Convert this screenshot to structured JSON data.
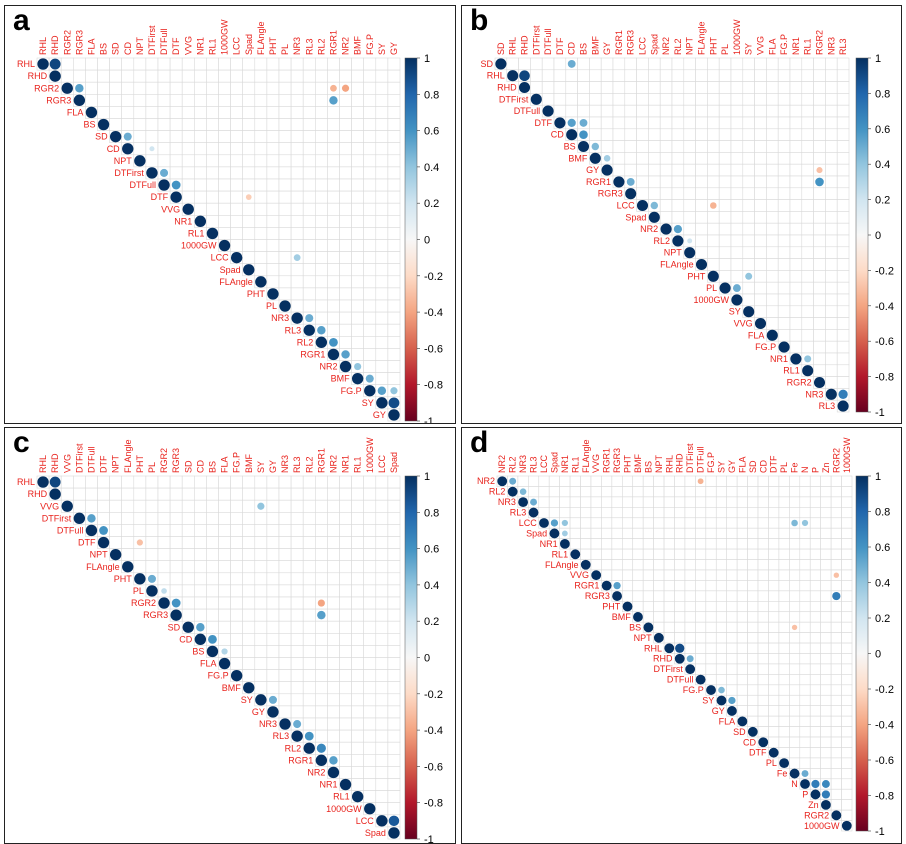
{
  "colors": {
    "label": "#e8221c",
    "grid": "#d9d9d9",
    "diagonal": "#053061",
    "scale": [
      "#67001f",
      "#b2182b",
      "#d6604d",
      "#f4a582",
      "#fddbc7",
      "#f7f7f7",
      "#d1e5f0",
      "#92c5de",
      "#4393c3",
      "#2166ac",
      "#053061"
    ]
  },
  "colorbar": {
    "ticks": [
      "1",
      "0.8",
      "0.6",
      "0.4",
      "0.2",
      "0",
      "-0.2",
      "-0.4",
      "-0.6",
      "-0.8",
      "-1"
    ],
    "range": [
      -1,
      1
    ]
  },
  "chart_data": [
    {
      "type": "heatmap",
      "panel": "a",
      "variables": [
        "RHL",
        "RHD",
        "RGR2",
        "RGR3",
        "FLA",
        "BS",
        "SD",
        "CD",
        "NPT",
        "DTFirst",
        "DTFull",
        "DTF",
        "VVG",
        "NR1",
        "RL1",
        "1000GW",
        "LCC",
        "Spad",
        "FLAngle",
        "PHT",
        "PL",
        "NR3",
        "RL3",
        "RL2",
        "RGR1",
        "NR2",
        "BMF",
        "FG.P",
        "SY",
        "GY"
      ],
      "matrix_shape": "upper-triangle",
      "diagonal": 1,
      "highlights": [
        {
          "row": "RHL",
          "col": "RHD",
          "r": 0.92
        },
        {
          "row": "RGR2",
          "col": "RGR3",
          "r": 0.55
        },
        {
          "row": "SD",
          "col": "CD",
          "r": 0.5
        },
        {
          "row": "CD",
          "col": "DTFirst",
          "r": 0.2
        },
        {
          "row": "DTFirst",
          "col": "DTFull",
          "r": 0.5
        },
        {
          "row": "DTFull",
          "col": "DTF",
          "r": 0.6
        },
        {
          "row": "NR3",
          "col": "RL3",
          "r": 0.5
        },
        {
          "row": "RL3",
          "col": "RL2",
          "r": 0.55
        },
        {
          "row": "RL2",
          "col": "RGR1",
          "r": 0.6
        },
        {
          "row": "RGR1",
          "col": "NR2",
          "r": 0.55
        },
        {
          "row": "NR2",
          "col": "BMF",
          "r": 0.4
        },
        {
          "row": "BMF",
          "col": "FG.P",
          "r": 0.5
        },
        {
          "row": "FG.P",
          "col": "SY",
          "r": 0.55
        },
        {
          "row": "SY",
          "col": "GY",
          "r": 0.9
        },
        {
          "row": "RGR2",
          "col": "RGR1",
          "r": -0.35
        },
        {
          "row": "RGR2",
          "col": "NR2",
          "r": -0.4
        },
        {
          "row": "RGR3",
          "col": "RGR1",
          "r": 0.55
        },
        {
          "row": "FG.P",
          "col": "GY",
          "r": 0.4
        },
        {
          "row": "LCC",
          "col": "NR3",
          "r": 0.35
        },
        {
          "row": "DTF",
          "col": "Spad",
          "r": -0.25
        }
      ]
    },
    {
      "type": "heatmap",
      "panel": "b",
      "variables": [
        "SD",
        "RHL",
        "RHD",
        "DTFirst",
        "DTFull",
        "DTF",
        "CD",
        "BS",
        "BMF",
        "GY",
        "RGR1",
        "RGR3",
        "LCC",
        "Spad",
        "NR2",
        "RL2",
        "NPT",
        "FLAngle",
        "PHT",
        "PL",
        "1000GW",
        "SY",
        "VVG",
        "FLA",
        "FG.P",
        "NR1",
        "RL1",
        "RGR2",
        "NR3",
        "RL3"
      ],
      "matrix_shape": "upper-triangle",
      "diagonal": 1,
      "highlights": [
        {
          "row": "SD",
          "col": "CD",
          "r": 0.5
        },
        {
          "row": "RHL",
          "col": "RHD",
          "r": 0.92
        },
        {
          "row": "DTF",
          "col": "CD",
          "r": 0.55
        },
        {
          "row": "DTF",
          "col": "BS",
          "r": 0.5
        },
        {
          "row": "CD",
          "col": "BS",
          "r": 0.6
        },
        {
          "row": "BS",
          "col": "BMF",
          "r": 0.45
        },
        {
          "row": "BMF",
          "col": "GY",
          "r": 0.35
        },
        {
          "row": "RGR1",
          "col": "RGR3",
          "r": 0.5
        },
        {
          "row": "LCC",
          "col": "Spad",
          "r": 0.45
        },
        {
          "row": "NR2",
          "col": "RL2",
          "r": 0.55
        },
        {
          "row": "RL2",
          "col": "NPT",
          "r": 0.2
        },
        {
          "row": "PL",
          "col": "1000GW",
          "r": 0.5
        },
        {
          "row": "NR1",
          "col": "RL1",
          "r": 0.4
        },
        {
          "row": "NR3",
          "col": "RL3",
          "r": 0.7
        },
        {
          "row": "GY",
          "col": "RGR2",
          "r": -0.3
        },
        {
          "row": "RGR1",
          "col": "RGR2",
          "r": 0.6
        },
        {
          "row": "LCC",
          "col": "PHT",
          "r": -0.35
        },
        {
          "row": "PHT",
          "col": "SY",
          "r": 0.4
        }
      ]
    },
    {
      "type": "heatmap",
      "panel": "c",
      "variables": [
        "RHL",
        "RHD",
        "VVG",
        "DTFirst",
        "DTFull",
        "DTF",
        "NPT",
        "FLAngle",
        "PHT",
        "PL",
        "RGR2",
        "RGR3",
        "SD",
        "CD",
        "BS",
        "FLA",
        "FG.P",
        "BMF",
        "SY",
        "GY",
        "NR3",
        "RL3",
        "RL2",
        "RGR1",
        "NR2",
        "NR1",
        "RL1",
        "1000GW",
        "LCC",
        "Spad"
      ],
      "matrix_shape": "upper-triangle",
      "diagonal": 1,
      "highlights": [
        {
          "row": "RHL",
          "col": "RHD",
          "r": 0.92
        },
        {
          "row": "DTFirst",
          "col": "DTFull",
          "r": 0.55
        },
        {
          "row": "DTFull",
          "col": "DTF",
          "r": 0.6
        },
        {
          "row": "DTF",
          "col": "PHT",
          "r": -0.3
        },
        {
          "row": "PHT",
          "col": "PL",
          "r": 0.5
        },
        {
          "row": "PL",
          "col": "RGR2",
          "r": 0.25
        },
        {
          "row": "RGR2",
          "col": "RGR3",
          "r": 0.6
        },
        {
          "row": "SD",
          "col": "CD",
          "r": 0.55
        },
        {
          "row": "CD",
          "col": "BS",
          "r": 0.6
        },
        {
          "row": "BS",
          "col": "FLA",
          "r": 0.3
        },
        {
          "row": "SY",
          "col": "GY",
          "r": 0.5
        },
        {
          "row": "NR3",
          "col": "RL3",
          "r": 0.5
        },
        {
          "row": "RL3",
          "col": "RL2",
          "r": 0.6
        },
        {
          "row": "RL2",
          "col": "RGR1",
          "r": 0.65
        },
        {
          "row": "RGR1",
          "col": "NR2",
          "r": 0.55
        },
        {
          "row": "LCC",
          "col": "Spad",
          "r": 0.85
        },
        {
          "row": "RGR2",
          "col": "RGR1",
          "r": -0.4
        },
        {
          "row": "RGR3",
          "col": "RGR1",
          "r": 0.55
        },
        {
          "row": "VVG",
          "col": "SY",
          "r": 0.4
        }
      ]
    },
    {
      "type": "heatmap",
      "panel": "d",
      "variables": [
        "NR2",
        "RL2",
        "NR3",
        "RL3",
        "LCC",
        "Spad",
        "NR1",
        "RL1",
        "FLAngle",
        "VVG",
        "RGR1",
        "RGR3",
        "PHT",
        "BMF",
        "BS",
        "NPT",
        "RHL",
        "RHD",
        "DTFirst",
        "DTFull",
        "FG.P",
        "SY",
        "GY",
        "FLA",
        "SD",
        "CD",
        "DTF",
        "PL",
        "Fe",
        "N",
        "P",
        "Zn",
        "RGR2",
        "1000GW"
      ],
      "matrix_shape": "upper-triangle",
      "diagonal": 1,
      "highlights": [
        {
          "row": "NR2",
          "col": "RL2",
          "r": 0.5
        },
        {
          "row": "RL2",
          "col": "NR3",
          "r": 0.45
        },
        {
          "row": "NR3",
          "col": "RL3",
          "r": 0.5
        },
        {
          "row": "LCC",
          "col": "Spad",
          "r": 0.55
        },
        {
          "row": "LCC",
          "col": "NR1",
          "r": 0.4
        },
        {
          "row": "Spad",
          "col": "NR1",
          "r": 0.35
        },
        {
          "row": "RHL",
          "col": "RHD",
          "r": 0.9
        },
        {
          "row": "RHD",
          "col": "DTFirst",
          "r": 0.5
        },
        {
          "row": "FG.P",
          "col": "SY",
          "r": 0.45
        },
        {
          "row": "SY",
          "col": "GY",
          "r": 0.55
        },
        {
          "row": "Fe",
          "col": "N",
          "r": 0.5
        },
        {
          "row": "N",
          "col": "P",
          "r": 0.7
        },
        {
          "row": "N",
          "col": "Zn",
          "r": 0.65
        },
        {
          "row": "P",
          "col": "Zn",
          "r": 0.7
        },
        {
          "row": "RGR1",
          "col": "RGR3",
          "r": 0.55
        },
        {
          "row": "NR2",
          "col": "DTFull",
          "r": -0.35
        },
        {
          "row": "LCC",
          "col": "Fe",
          "r": 0.45
        },
        {
          "row": "LCC",
          "col": "N",
          "r": 0.4
        },
        {
          "row": "BS",
          "col": "Fe",
          "r": -0.3
        },
        {
          "row": "VVG",
          "col": "RGR2",
          "r": -0.3
        },
        {
          "row": "RGR3",
          "col": "RGR2",
          "r": 0.7
        }
      ]
    }
  ],
  "panels": [
    {
      "letter": "a"
    },
    {
      "letter": "b"
    },
    {
      "letter": "c"
    },
    {
      "letter": "d"
    }
  ]
}
